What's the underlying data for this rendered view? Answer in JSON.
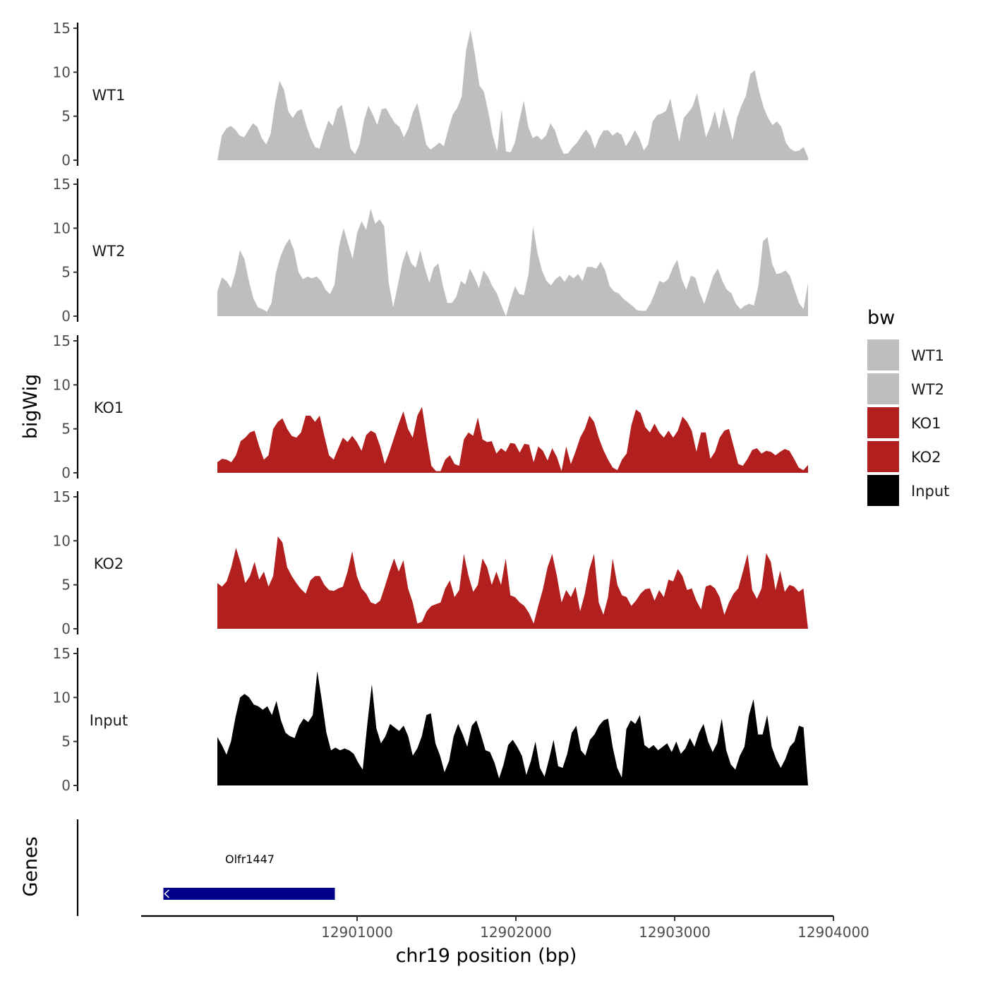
{
  "chart_data": {
    "type": "area",
    "title": "",
    "xlabel": "chr19 position (bp)",
    "ylabel": "bigWig",
    "genes_label": "Genes",
    "xlim": [
      12899640,
      12904000
    ],
    "x_ticks": [
      12901000,
      12902000,
      12903000,
      12904000
    ],
    "x_tick_labels": [
      "12901000",
      "12902000",
      "12903000",
      "12904000"
    ],
    "ylim": [
      0,
      15
    ],
    "y_ticks": [
      0,
      5,
      10,
      15
    ],
    "y_tick_labels": [
      "0",
      "5",
      "10",
      "15"
    ],
    "grid": false,
    "legend": {
      "title": "bw",
      "position": "right",
      "entries": [
        {
          "label": "WT1",
          "color": "#bebebe"
        },
        {
          "label": "WT2",
          "color": "#bebebe"
        },
        {
          "label": "KO1",
          "color": "#b21f1f"
        },
        {
          "label": "KO2",
          "color": "#b21f1f"
        },
        {
          "label": "Input",
          "color": "#000000"
        }
      ]
    },
    "tracks": [
      {
        "name": "WT1",
        "color": "#bebebe",
        "x_start": 12900120,
        "x_end": 12903840,
        "values": [
          0,
          2.8,
          3.6,
          3.9,
          3.5,
          2.8,
          2.6,
          3.4,
          4.2,
          3.8,
          2.5,
          1.8,
          3.0,
          6.5,
          9.0,
          8.0,
          5.5,
          4.8,
          5.6,
          5.8,
          4.0,
          2.5,
          1.5,
          1.3,
          3.0,
          4.5,
          3.9,
          5.8,
          6.3,
          4.0,
          1.3,
          0.7,
          1.8,
          4.5,
          6.2,
          5.2,
          4.0,
          5.8,
          5.9,
          5.0,
          4.2,
          3.8,
          2.6,
          3.6,
          5.4,
          6.5,
          4.3,
          1.8,
          1.2,
          1.6,
          2.0,
          1.6,
          3.5,
          5.2,
          5.9,
          7.2,
          12.5,
          14.8,
          12.0,
          8.5,
          7.8,
          5.5,
          2.8,
          1.0,
          5.8,
          1.0,
          0.9,
          2.0,
          4.5,
          6.8,
          3.8,
          2.5,
          2.8,
          2.3,
          2.8,
          4.2,
          3.4,
          1.8,
          0.7,
          0.8,
          1.5,
          2.0,
          2.8,
          3.5,
          2.8,
          1.3,
          2.6,
          3.4,
          3.4,
          2.8,
          3.2,
          2.9,
          1.6,
          2.4,
          3.4,
          2.5,
          1.1,
          1.8,
          4.4,
          5.1,
          5.3,
          5.6,
          7.0,
          4.5,
          2.1,
          4.8,
          5.4,
          6.1,
          7.6,
          5.1,
          2.6,
          3.8,
          5.6,
          3.5,
          6.0,
          4.3,
          2.3,
          4.8,
          6.2,
          7.3,
          9.8,
          10.2,
          7.8,
          6.0,
          4.8,
          4.0,
          4.4,
          3.8,
          2.0,
          1.3,
          1.0,
          1.1,
          1.5,
          0.3
        ],
        "raw_values_note": ""
      },
      {
        "name": "WT2",
        "color": "#bebebe",
        "x_start": 12900120,
        "x_end": 12903840,
        "values": [
          2.8,
          4.4,
          4.0,
          3.2,
          5.0,
          7.5,
          6.5,
          4.0,
          2.0,
          1.0,
          0.8,
          0.5,
          1.5,
          5.0,
          6.8,
          8.0,
          8.8,
          7.5,
          5.0,
          4.2,
          4.5,
          4.3,
          4.5,
          4.0,
          3.0,
          2.5,
          3.6,
          8.0,
          10.0,
          8.2,
          6.5,
          9.5,
          10.8,
          9.8,
          12.2,
          10.5,
          11.0,
          10.2,
          3.8,
          1.0,
          3.5,
          6.0,
          7.5,
          6.0,
          5.5,
          7.5,
          5.5,
          3.8,
          5.5,
          6.0,
          3.5,
          1.5,
          1.5,
          2.2,
          4.0,
          3.6,
          5.4,
          4.4,
          3.2,
          5.2,
          4.5,
          3.4,
          2.6,
          1.2,
          0,
          1.8,
          3.4,
          2.5,
          2.4,
          4.8,
          10.2,
          7.2,
          5.2,
          4.0,
          3.5,
          4.2,
          4.6,
          3.9,
          4.7,
          4.3,
          4.8,
          4.0,
          5.6,
          5.6,
          5.4,
          6.2,
          5.2,
          3.4,
          2.8,
          2.6,
          2.0,
          1.6,
          1.2,
          0.7,
          0.6,
          0.6,
          1.4,
          2.6,
          4.0,
          3.8,
          4.2,
          5.5,
          6.4,
          4.2,
          3.0,
          4.6,
          4.4,
          2.6,
          1.4,
          3.0,
          4.6,
          5.4,
          4.0,
          3.0,
          2.6,
          1.4,
          0.8,
          1.2,
          1.4,
          1.2,
          3.5,
          8.5,
          9.0,
          6.0,
          4.8,
          4.9,
          5.2,
          4.6,
          3.0,
          1.5,
          0.8,
          3.8
        ]
      },
      {
        "name": "KO1",
        "color": "#b21f1f",
        "x_start": 12900120,
        "x_end": 12903840,
        "values": [
          1.2,
          1.6,
          1.5,
          1.2,
          2.0,
          3.6,
          4.0,
          4.6,
          4.8,
          3.0,
          1.5,
          2.0,
          5.0,
          5.8,
          6.2,
          5.0,
          4.2,
          4.0,
          4.6,
          6.5,
          6.5,
          5.8,
          6.5,
          4.2,
          2.0,
          1.5,
          2.8,
          4.0,
          3.5,
          4.2,
          3.5,
          2.5,
          4.3,
          4.8,
          4.5,
          3.0,
          1.0,
          2.4,
          4.0,
          5.6,
          7.0,
          5.0,
          4.0,
          6.5,
          7.5,
          4.0,
          0.8,
          0.2,
          0.2,
          1.5,
          2.0,
          1.0,
          0.8,
          3.8,
          4.6,
          4.2,
          6.3,
          3.8,
          3.5,
          3.6,
          2.2,
          2.8,
          2.4,
          3.4,
          3.3,
          2.3,
          3.3,
          3.2,
          1.2,
          3.0,
          2.5,
          1.4,
          2.8,
          1.8,
          0.2,
          3.0,
          1.0,
          2.4,
          4.0,
          5.0,
          6.5,
          5.8,
          4.0,
          2.6,
          1.5,
          0.6,
          0.3,
          1.5,
          2.2,
          5.4,
          7.2,
          6.8,
          5.2,
          4.6,
          5.6,
          4.6,
          4.0,
          4.8,
          4.0,
          4.8,
          6.4,
          5.8,
          4.8,
          2.4,
          4.6,
          4.6,
          1.6,
          2.4,
          4.0,
          4.8,
          5.0,
          3.0,
          1.0,
          0.8,
          1.6,
          2.6,
          2.8,
          2.2,
          2.5,
          2.4,
          2.0,
          2.4,
          2.7,
          2.5,
          1.6,
          0.6,
          0.3,
          0.9
        ]
      },
      {
        "name": "KO2",
        "color": "#b21f1f",
        "x_start": 12900120,
        "x_end": 12903840,
        "values": [
          5.2,
          4.8,
          5.4,
          7.0,
          9.2,
          7.5,
          5.2,
          6.0,
          7.6,
          5.6,
          6.5,
          4.8,
          6.0,
          10.5,
          9.8,
          7.0,
          6.0,
          5.2,
          4.5,
          4.0,
          5.5,
          6.0,
          6.0,
          5.0,
          4.4,
          4.3,
          4.6,
          4.8,
          6.5,
          8.8,
          6.0,
          4.6,
          4.0,
          3.0,
          2.8,
          3.2,
          4.8,
          6.5,
          8.0,
          6.5,
          7.8,
          4.6,
          3.0,
          0.6,
          0.8,
          2.0,
          2.6,
          2.8,
          3.0,
          4.6,
          5.5,
          3.6,
          4.4,
          8.5,
          6.0,
          4.2,
          5.0,
          8.0,
          7.0,
          5.0,
          6.5,
          5.0,
          8.0,
          3.8,
          3.6,
          3.0,
          2.6,
          1.8,
          0.6,
          2.6,
          4.5,
          7.0,
          8.5,
          6.0,
          3.0,
          4.4,
          3.6,
          4.8,
          2.0,
          4.0,
          6.8,
          8.5,
          3.0,
          1.6,
          3.6,
          8.0,
          5.0,
          3.8,
          3.6,
          2.6,
          3.2,
          4.0,
          4.5,
          4.6,
          3.2,
          4.4,
          3.6,
          5.6,
          5.4,
          6.8,
          6.0,
          4.4,
          4.6,
          3.2,
          2.2,
          4.8,
          5.0,
          4.6,
          3.6,
          1.6,
          3.0,
          4.0,
          4.6,
          6.5,
          8.5,
          4.4,
          3.4,
          4.6,
          8.6,
          7.6,
          4.4,
          6.6,
          4.2,
          5.0,
          4.8,
          4.2,
          4.6,
          0
        ]
      },
      {
        "name": "Input",
        "color": "#000000",
        "x_start": 12900120,
        "x_end": 12903840,
        "values": [
          5.5,
          4.6,
          3.5,
          5.0,
          7.8,
          10.0,
          10.4,
          10.0,
          9.2,
          9.0,
          8.6,
          9.0,
          8.0,
          9.6,
          7.4,
          6.0,
          5.6,
          5.4,
          6.8,
          7.6,
          7.2,
          8.0,
          13.0,
          9.6,
          6.0,
          4.0,
          4.3,
          4.0,
          4.2,
          4.0,
          3.6,
          2.6,
          1.8,
          7.0,
          11.5,
          6.5,
          4.8,
          5.6,
          7.0,
          6.6,
          6.2,
          6.8,
          5.6,
          3.4,
          4.2,
          5.6,
          8.0,
          8.2,
          4.8,
          3.4,
          1.5,
          2.8,
          5.6,
          7.0,
          5.8,
          4.4,
          6.8,
          7.4,
          5.8,
          4.0,
          3.8,
          2.6,
          0.8,
          2.4,
          4.6,
          5.2,
          4.4,
          3.4,
          1.2,
          2.8,
          5.0,
          2.0,
          1.0,
          3.0,
          5.2,
          2.2,
          2.0,
          3.6,
          6.0,
          6.8,
          4.0,
          3.4,
          5.2,
          5.8,
          6.8,
          7.4,
          7.6,
          4.4,
          2.0,
          0.9,
          6.4,
          7.4,
          7.0,
          8.0,
          4.6,
          4.2,
          4.6,
          4.0,
          4.4,
          4.8,
          3.8,
          5.0,
          3.6,
          4.2,
          5.4,
          4.4,
          6.0,
          7.0,
          5.0,
          3.8,
          4.8,
          7.6,
          4.0,
          2.4,
          1.8,
          3.4,
          4.4,
          8.0,
          9.8,
          5.8,
          5.8,
          8.0,
          4.4,
          3.0,
          2.0,
          3.0,
          4.4,
          5.0,
          6.8,
          6.6,
          0
        ]
      }
    ],
    "genes": [
      {
        "name": "Olfr1447",
        "start": 12899780,
        "end": 12900860,
        "strand": "-",
        "color": "#00008b"
      }
    ]
  }
}
